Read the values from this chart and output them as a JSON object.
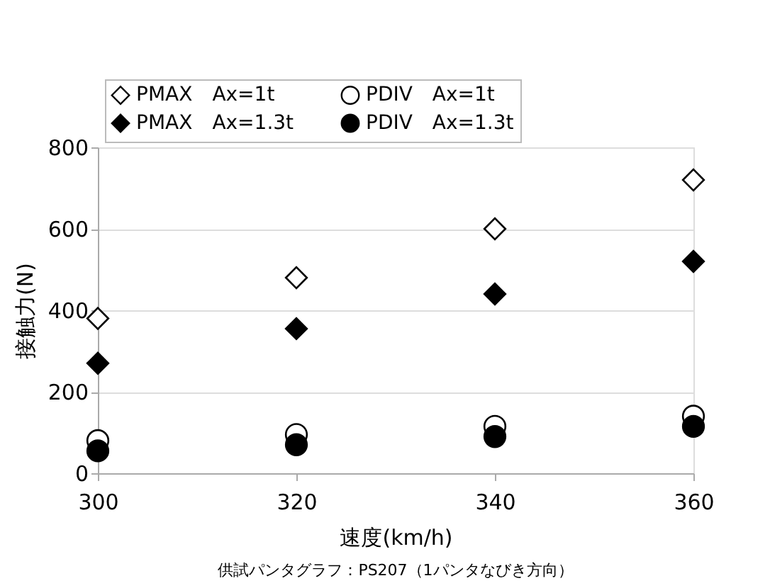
{
  "chart_data": {
    "type": "scatter",
    "xlabel": "速度(km/h)",
    "ylabel": "接触力(N)",
    "x": [
      300,
      320,
      340,
      360
    ],
    "series": [
      {
        "name": "PMAX　Ax=1t",
        "color": "#ffffff",
        "marker": "diamond",
        "values": [
          380,
          480,
          600,
          720
        ]
      },
      {
        "name": "PMAX　Ax=1.3t",
        "color": "#000000",
        "marker": "diamond",
        "values": [
          270,
          355,
          440,
          520
        ]
      },
      {
        "name": "PDIV　Ax=1t",
        "color": "#ffffff",
        "marker": "circle",
        "values": [
          80,
          95,
          115,
          140
        ]
      },
      {
        "name": "PDIV　Ax=1.3t",
        "color": "#000000",
        "marker": "circle",
        "values": [
          55,
          70,
          90,
          115
        ]
      }
    ],
    "xlim": [
      300,
      360
    ],
    "xticks": [
      300,
      320,
      340,
      360
    ],
    "ylim": [
      0,
      800
    ],
    "yticks": [
      0,
      200,
      400,
      600,
      800
    ],
    "grid": "y",
    "legend": "top left",
    "annotations": [
      "供試パンタグラフ：PS207（1パンタなびき方向）"
    ]
  }
}
